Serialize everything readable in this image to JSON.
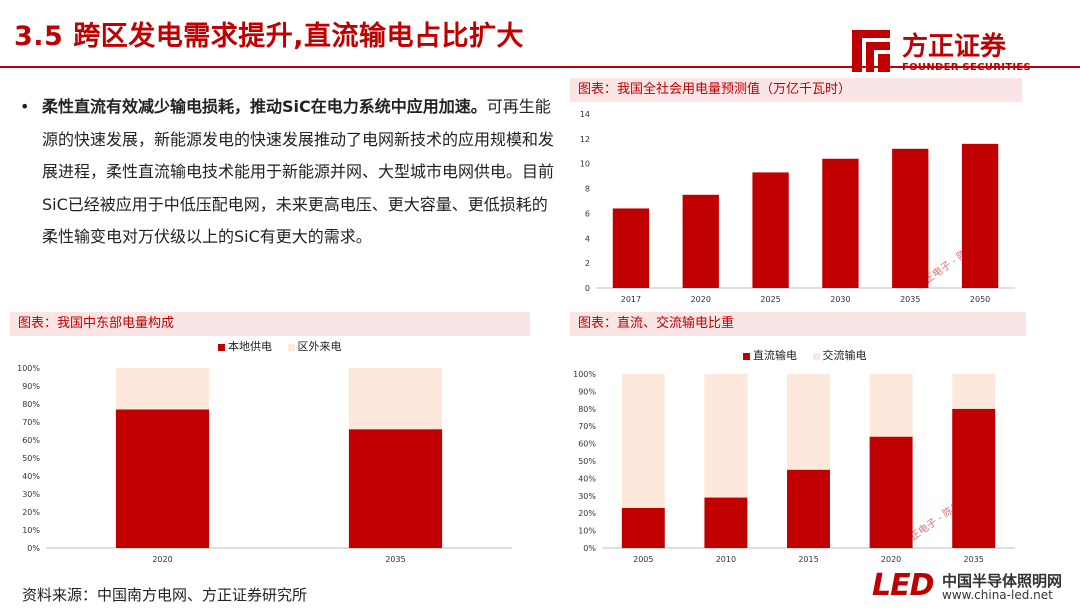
{
  "header": {
    "title": "3.5 跨区发电需求提升,直流输电占比扩大",
    "logo_cn": "方正证券",
    "logo_en": "FOUNDER SECURITIES",
    "brand_color": "#c00000"
  },
  "bullet": {
    "marker": "•",
    "lead": "柔性直流有效减少输电损耗，推动SiC在电力系统中应用加速。",
    "body": "可再生能源的快速发展，新能源发电的快速发展推动了电网新技术的应用规模和发展进程，柔性直流输电技术能用于新能源并网、大型城市电网供电。目前SiC已经被应用于中低压配电网，未来更高电压、更大容量、更低损耗的柔性输变电对万伏级以上的SiC有更大的需求。"
  },
  "watermark": "方正电子 - 陈杭",
  "footer": {
    "source": "资料来源：中国南方电网、方正证券研究所",
    "site_logo": "LED",
    "site_name": "中国半导体照明网",
    "site_url": "www.china-led.net"
  },
  "chart_data": [
    {
      "id": "consumption",
      "type": "bar",
      "title": "图表：我国全社会用电量预测值（万亿千瓦时）",
      "categories": [
        "2017",
        "2020",
        "2025",
        "2030",
        "2035",
        "2050"
      ],
      "values": [
        6.4,
        7.5,
        9.3,
        10.4,
        11.2,
        11.6
      ],
      "ylim": [
        0,
        14
      ],
      "yticks": [
        "0",
        "2",
        "4",
        "6",
        "8",
        "10",
        "12",
        "14"
      ],
      "color": "#c00000"
    },
    {
      "id": "eastcentral",
      "type": "bar",
      "stacked": true,
      "title": "图表：我国中东部电量构成",
      "categories": [
        "2020",
        "2035"
      ],
      "series": [
        {
          "name": "本地供电",
          "values": [
            77,
            66
          ],
          "color": "#c00000"
        },
        {
          "name": "区外来电",
          "values": [
            23,
            34
          ],
          "color": "#fde9dc"
        }
      ],
      "ylim": [
        0,
        100
      ],
      "yticks": [
        "0%",
        "10%",
        "20%",
        "30%",
        "40%",
        "50%",
        "60%",
        "70%",
        "80%",
        "90%",
        "100%"
      ],
      "legend": "top"
    },
    {
      "id": "dcac",
      "type": "bar",
      "stacked": true,
      "title": "图表：直流、交流输电比重",
      "categories": [
        "2005",
        "2010",
        "2015",
        "2020",
        "2035"
      ],
      "series": [
        {
          "name": "直流输电",
          "values": [
            23,
            29,
            45,
            64,
            80
          ],
          "color": "#c00000"
        },
        {
          "name": "交流输电",
          "values": [
            77,
            71,
            55,
            36,
            20
          ],
          "color": "#fde9dc"
        }
      ],
      "ylim": [
        0,
        100
      ],
      "yticks": [
        "0%",
        "10%",
        "20%",
        "30%",
        "40%",
        "50%",
        "60%",
        "70%",
        "80%",
        "90%",
        "100%"
      ],
      "legend": "top"
    }
  ]
}
